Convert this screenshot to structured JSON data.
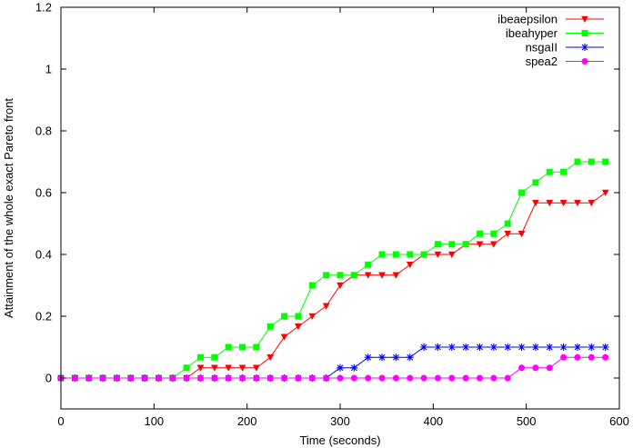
{
  "chart_data": {
    "type": "line",
    "xlabel": "Time (seconds)",
    "ylabel": "Attainment of the whole exact Pareto front",
    "xlim": [
      0,
      600
    ],
    "ylim": [
      -0.1,
      1.2
    ],
    "xticks": [
      0,
      100,
      200,
      300,
      400,
      500,
      600
    ],
    "yticks": [
      0,
      0.2,
      0.4,
      0.6,
      0.8,
      1,
      1.2
    ],
    "xtick_labels": [
      "0",
      "100",
      "200",
      "300",
      "400",
      "500",
      "600"
    ],
    "ytick_labels": [
      "0",
      "0.2",
      "0.4",
      "0.6",
      "0.8",
      "1",
      "1.2"
    ],
    "grid": false,
    "legend_position": "top-right",
    "series": [
      {
        "name": "ibeaepsilon",
        "color": "#ff0000",
        "marker": "triangle-down",
        "x": [
          0,
          15,
          30,
          45,
          60,
          75,
          90,
          105,
          120,
          135,
          150,
          165,
          180,
          195,
          210,
          225,
          240,
          255,
          270,
          285,
          300,
          315,
          330,
          345,
          360,
          375,
          390,
          405,
          420,
          435,
          450,
          465,
          480,
          495,
          510,
          525,
          540,
          555,
          570,
          585
        ],
        "y": [
          0,
          0,
          0,
          0,
          0,
          0,
          0,
          0,
          0,
          0,
          0.033,
          0.033,
          0.033,
          0.033,
          0.033,
          0.067,
          0.133,
          0.167,
          0.2,
          0.233,
          0.3,
          0.333,
          0.333,
          0.333,
          0.333,
          0.367,
          0.4,
          0.4,
          0.4,
          0.433,
          0.433,
          0.433,
          0.467,
          0.467,
          0.567,
          0.567,
          0.567,
          0.567,
          0.567,
          0.6
        ]
      },
      {
        "name": "ibeahyper",
        "color": "#00ff00",
        "marker": "square",
        "x": [
          0,
          15,
          30,
          45,
          60,
          75,
          90,
          105,
          120,
          135,
          150,
          165,
          180,
          195,
          210,
          225,
          240,
          255,
          270,
          285,
          300,
          315,
          330,
          345,
          360,
          375,
          390,
          405,
          420,
          435,
          450,
          465,
          480,
          495,
          510,
          525,
          540,
          555,
          570,
          585
        ],
        "y": [
          0,
          0,
          0,
          0,
          0,
          0,
          0,
          0,
          0,
          0.033,
          0.067,
          0.067,
          0.1,
          0.1,
          0.1,
          0.167,
          0.2,
          0.2,
          0.3,
          0.333,
          0.333,
          0.333,
          0.367,
          0.4,
          0.4,
          0.4,
          0.4,
          0.433,
          0.433,
          0.433,
          0.467,
          0.467,
          0.5,
          0.6,
          0.633,
          0.667,
          0.667,
          0.7,
          0.7,
          0.7
        ]
      },
      {
        "name": "nsgaII",
        "color": "#0000ff",
        "marker": "star",
        "x": [
          0,
          15,
          30,
          45,
          60,
          75,
          90,
          105,
          120,
          135,
          150,
          165,
          180,
          195,
          210,
          225,
          240,
          255,
          270,
          285,
          300,
          315,
          330,
          345,
          360,
          375,
          390,
          405,
          420,
          435,
          450,
          465,
          480,
          495,
          510,
          525,
          540,
          555,
          570,
          585
        ],
        "y": [
          0,
          0,
          0,
          0,
          0,
          0,
          0,
          0,
          0,
          0,
          0,
          0,
          0,
          0,
          0,
          0,
          0,
          0,
          0,
          0,
          0.033,
          0.033,
          0.067,
          0.067,
          0.067,
          0.067,
          0.1,
          0.1,
          0.1,
          0.1,
          0.1,
          0.1,
          0.1,
          0.1,
          0.1,
          0.1,
          0.1,
          0.1,
          0.1,
          0.1
        ]
      },
      {
        "name": "spea2",
        "color": "#ff00ff",
        "marker": "circle",
        "x": [
          0,
          15,
          30,
          45,
          60,
          75,
          90,
          105,
          120,
          135,
          150,
          165,
          180,
          195,
          210,
          225,
          240,
          255,
          270,
          285,
          300,
          315,
          330,
          345,
          360,
          375,
          390,
          405,
          420,
          435,
          450,
          465,
          480,
          495,
          510,
          525,
          540,
          555,
          570,
          585
        ],
        "y": [
          0,
          0,
          0,
          0,
          0,
          0,
          0,
          0,
          0,
          0,
          0,
          0,
          0,
          0,
          0,
          0,
          0,
          0,
          0,
          0,
          0,
          0,
          0,
          0,
          0,
          0,
          0,
          0,
          0,
          0,
          0,
          0,
          0,
          0.033,
          0.033,
          0.033,
          0.067,
          0.067,
          0.067,
          0.067
        ]
      }
    ]
  }
}
